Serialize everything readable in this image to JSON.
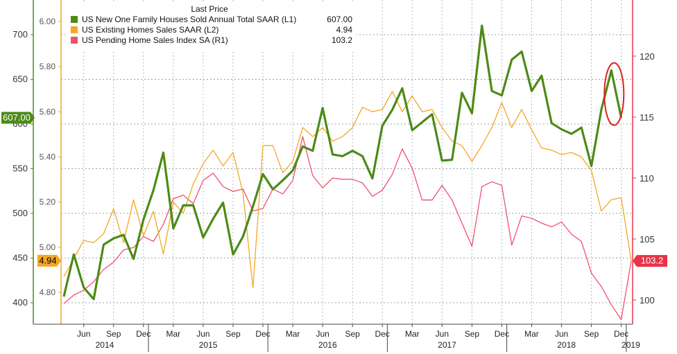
{
  "chart_data": {
    "type": "line",
    "legend": {
      "title": "Last Price",
      "placement": "top-left",
      "entries": [
        {
          "label": "US New One Family Houses Sold Annual Total SAAR (L1)",
          "value": "607.00",
          "color": "#4d8a17"
        },
        {
          "label": "US Existing Homes Sales SAAR  (L2)",
          "value": "4.94",
          "color": "#f5a623"
        },
        {
          "label": "US Pending Home Sales Index SA  (R1)",
          "value": "103.2",
          "color": "#f0506e"
        }
      ]
    },
    "axes": {
      "L1": {
        "ticks": [
          "400",
          "450",
          "500",
          "550",
          "600",
          "650",
          "700"
        ],
        "range": [
          380,
          730
        ],
        "color": "#4d8a17",
        "last_label": "607.00"
      },
      "L2": {
        "ticks": [
          "4.80",
          "5.00",
          "5.20",
          "5.40",
          "5.60",
          "5.80",
          "6.00"
        ],
        "range": [
          4.7,
          6.1
        ],
        "color": "#f5a623",
        "last_label": "4.94"
      },
      "R1": {
        "ticks": [
          "100",
          "105",
          "110",
          "115",
          "120"
        ],
        "range": [
          98,
          125
        ],
        "color": "#e8334a",
        "last_label": "103.2"
      }
    },
    "x_months": [
      "Apr 2014",
      "May 2014",
      "Jun 2014",
      "Jul 2014",
      "Aug 2014",
      "Sep 2014",
      "Oct 2014",
      "Nov 2014",
      "Dec 2014",
      "Jan 2015",
      "Feb 2015",
      "Mar 2015",
      "Apr 2015",
      "May 2015",
      "Jun 2015",
      "Jul 2015",
      "Aug 2015",
      "Sep 2015",
      "Oct 2015",
      "Nov 2015",
      "Dec 2015",
      "Jan 2016",
      "Feb 2016",
      "Mar 2016",
      "Apr 2016",
      "May 2016",
      "Jun 2016",
      "Jul 2016",
      "Aug 2016",
      "Sep 2016",
      "Oct 2016",
      "Nov 2016",
      "Dec 2016",
      "Jan 2017",
      "Feb 2017",
      "Mar 2017",
      "Apr 2017",
      "May 2017",
      "Jun 2017",
      "Jul 2017",
      "Aug 2017",
      "Sep 2017",
      "Oct 2017",
      "Nov 2017",
      "Dec 2017",
      "Jan 2018",
      "Feb 2018",
      "Mar 2018",
      "Apr 2018",
      "May 2018",
      "Jun 2018",
      "Jul 2018",
      "Aug 2018",
      "Sep 2018",
      "Oct 2018",
      "Nov 2018",
      "Dec 2018",
      "Jan 2019"
    ],
    "month_labels": [
      "Jun",
      "Sep",
      "Dec",
      "Mar",
      "Jun",
      "Sep",
      "Dec",
      "Mar",
      "Jun",
      "Sep",
      "Dec",
      "Mar",
      "Jun",
      "Sep",
      "Dec",
      "Mar",
      "Jun",
      "Sep",
      "Dec"
    ],
    "year_labels": [
      "2014",
      "2015",
      "2016",
      "2017",
      "2018",
      "2019"
    ],
    "series": [
      {
        "name": "US New One Family Houses Sold Annual Total SAAR (L1)",
        "axis": "L1",
        "color": "#4d8a17",
        "values": [
          407,
          454,
          417,
          404,
          465,
          472,
          476,
          449,
          493,
          526,
          568,
          483,
          509,
          509,
          473,
          494,
          512,
          454,
          474,
          508,
          544,
          527,
          537,
          548,
          575,
          570,
          618,
          566,
          564,
          570,
          564,
          539,
          598,
          616,
          640,
          593,
          602,
          611,
          559,
          560,
          635,
          612,
          710,
          637,
          632,
          672,
          681,
          637,
          654,
          601,
          594,
          589,
          596,
          553,
          616,
          660,
          607,
          null
        ]
      },
      {
        "name": "US Existing Homes Sales SAAR  (L2)",
        "axis": "L2",
        "color": "#f5a623",
        "values": [
          4.87,
          4.95,
          5.03,
          5.02,
          5.06,
          5.17,
          5.02,
          5.21,
          5.05,
          5.16,
          4.97,
          5.2,
          5.15,
          5.28,
          5.37,
          5.43,
          5.36,
          5.42,
          5.24,
          4.82,
          5.45,
          5.45,
          5.33,
          5.38,
          5.53,
          5.49,
          5.53,
          5.47,
          5.49,
          5.53,
          5.62,
          5.6,
          5.61,
          5.69,
          5.6,
          5.67,
          5.6,
          5.61,
          5.53,
          5.47,
          5.45,
          5.38,
          5.45,
          5.53,
          5.64,
          5.53,
          5.61,
          5.52,
          5.44,
          5.43,
          5.41,
          5.42,
          5.4,
          5.34,
          5.16,
          5.21,
          5.22,
          4.94
        ]
      },
      {
        "name": "US Pending Home Sales Index SA  (R1)",
        "axis": "R1",
        "color": "#f0506e",
        "values": [
          99.7,
          100.4,
          100.8,
          101.5,
          102.5,
          103.1,
          104.1,
          104.3,
          105.2,
          104.8,
          106.2,
          108.3,
          108.6,
          107.9,
          109.8,
          110.4,
          109.3,
          108.9,
          109.1,
          107.3,
          107.5,
          109.1,
          108.7,
          109.8,
          113.4,
          110.2,
          109.2,
          110.0,
          109.9,
          109.9,
          109.6,
          108.5,
          109.0,
          110.3,
          112.4,
          110.8,
          108.2,
          108.2,
          109.4,
          108.2,
          106.3,
          104.4,
          109.3,
          109.7,
          109.4,
          104.5,
          106.9,
          106.7,
          106.3,
          106.0,
          106.4,
          105.4,
          104.8,
          102.2,
          101.1,
          99.6,
          98.4,
          103.2
        ]
      }
    ],
    "annotation": {
      "type": "ellipse",
      "color": "#e02020",
      "near": "Dec 2018 peak"
    },
    "grid": true
  }
}
